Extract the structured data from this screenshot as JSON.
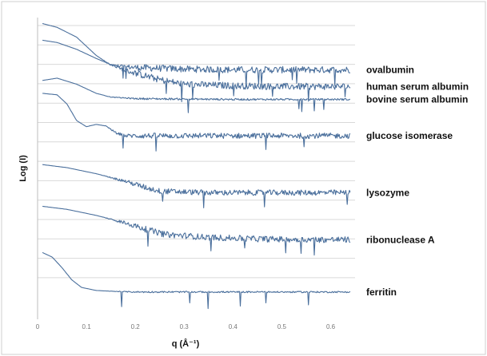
{
  "chart_data": {
    "type": "line",
    "title": "",
    "xlabel": "q (Å⁻¹)",
    "ylabel": "Log (I)",
    "x_ticks": [
      "0",
      "0.1",
      "0.2",
      "0.3",
      "0.4",
      "0.5",
      "0.6"
    ],
    "xlim": [
      0,
      0.65
    ],
    "x_grid": false,
    "y_grid": true,
    "line_color": "#4a6f9c",
    "legend": "labels at right end of each curve",
    "series": [
      {
        "name": "ovalbumin",
        "x": [
          0.01,
          0.04,
          0.08,
          0.12,
          0.15,
          0.2,
          0.3,
          0.4,
          0.5,
          0.6,
          0.64
        ],
        "y": [
          9.5,
          9.25,
          8.6,
          7.4,
          6.75,
          6.6,
          6.5,
          6.45,
          6.45,
          6.45,
          6.45
        ]
      },
      {
        "name": "human serum albumin",
        "x": [
          0.01,
          0.04,
          0.08,
          0.12,
          0.18,
          0.25,
          0.3,
          0.4,
          0.5,
          0.6,
          0.64
        ],
        "y": [
          8.4,
          8.25,
          7.8,
          7.2,
          6.4,
          5.8,
          5.5,
          5.4,
          5.35,
          5.35,
          5.35
        ]
      },
      {
        "name": "bovine serum albumin",
        "x": [
          0.01,
          0.04,
          0.08,
          0.12,
          0.15,
          0.2,
          0.3,
          0.4,
          0.5,
          0.6,
          0.64
        ],
        "y": [
          5.75,
          5.9,
          5.5,
          4.9,
          4.65,
          4.55,
          4.52,
          4.5,
          4.5,
          4.5,
          4.5
        ]
      },
      {
        "name": "glucose isomerase",
        "x": [
          0.01,
          0.04,
          0.06,
          0.08,
          0.1,
          0.12,
          0.14,
          0.16,
          0.18,
          0.3,
          0.45,
          0.6,
          0.64
        ],
        "y": [
          4.9,
          4.8,
          4.2,
          3.1,
          2.7,
          2.85,
          2.75,
          2.3,
          2.1,
          2.1,
          2.1,
          2.1,
          2.1
        ]
      },
      {
        "name": "lysozyme",
        "x": [
          0.01,
          0.06,
          0.12,
          0.18,
          0.22,
          0.25,
          0.35,
          0.45,
          0.55,
          0.64
        ],
        "y": [
          0.2,
          0.0,
          -0.4,
          -0.9,
          -1.3,
          -1.55,
          -1.65,
          -1.65,
          -1.65,
          -1.65
        ]
      },
      {
        "name": "ribonuclease A",
        "x": [
          0.01,
          0.06,
          0.12,
          0.18,
          0.22,
          0.26,
          0.35,
          0.45,
          0.55,
          0.64
        ],
        "y": [
          -2.55,
          -2.75,
          -3.15,
          -3.65,
          -4.05,
          -4.4,
          -4.6,
          -4.7,
          -4.75,
          -4.75
        ]
      },
      {
        "name": "ferritin",
        "x": [
          0.01,
          0.03,
          0.05,
          0.07,
          0.09,
          0.12,
          0.15,
          0.2,
          0.3,
          0.45,
          0.6,
          0.64
        ],
        "y": [
          -5.6,
          -5.9,
          -6.6,
          -7.4,
          -7.9,
          -8.1,
          -8.15,
          -8.2,
          -8.2,
          -8.2,
          -8.2,
          -8.2
        ]
      }
    ]
  }
}
